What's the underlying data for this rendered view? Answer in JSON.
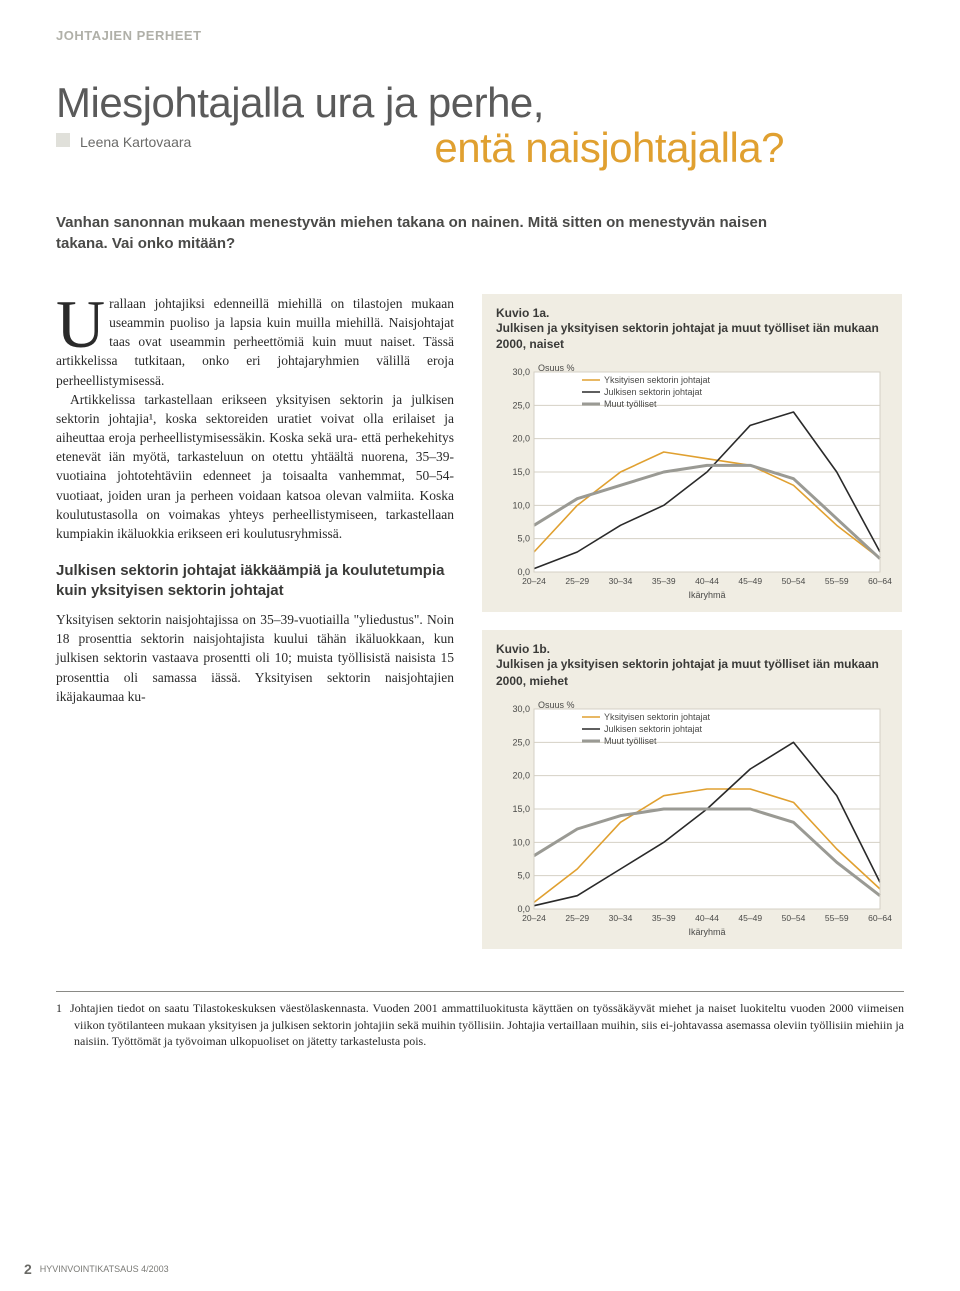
{
  "section_label": "JOHTAJIEN PERHEET",
  "title_line1": "Miesjohtajalla ura ja perhe,",
  "title_line2": "entä naisjohtajalla?",
  "author": "Leena Kartovaara",
  "lead": "Vanhan sanonnan mukaan menestyvän miehen takana on nainen. Mitä sitten on menestyvän naisen takana. Vai onko mitään?",
  "dropcap": "U",
  "para1": "rallaan johtajiksi edenneillä miehillä on tilastojen mukaan useammin puoliso ja lapsia kuin muilla miehillä. Naisjohtajat taas ovat useammin perheettömiä kuin muut naiset. Tässä artikkelissa tutkitaan, onko eri johtajaryhmien välillä eroja perheellistymisessä.",
  "para2": "Artikkelissa tarkastellaan erikseen yksityisen sektorin ja julkisen sektorin johtajia¹, koska sektoreiden uratiet voivat olla erilaiset ja aiheuttaa eroja perheellistymisessäkin. Koska sekä ura- että perhekehitys etenevät iän myötä, tarkasteluun on otettu yhtäältä nuorena, 35–39-vuotiaina johtotehtäviin edenneet ja toisaalta vanhemmat, 50–54-vuotiaat, joiden uran ja perheen voidaan katsoa olevan valmiita. Koska koulutustasolla on voimakas yhteys perheellistymiseen, tarkastellaan kumpiakin ikäluokkia erikseen eri koulutusryhmissä.",
  "subhead1": "Julkisen sektorin johtajat iäkkäämpiä ja koulutetumpia kuin yksityisen sektorin johtajat",
  "para3": "Yksityisen sektorin naisjohtajissa on 35–39-vuotiailla \"yliedustus\". Noin 18 prosenttia sektorin naisjohtajista kuului tähän ikäluokkaan, kun julkisen sektorin vastaava prosentti oli 10; muista työllisistä naisista 15 prosenttia oli samassa iässä. Yksityisen sektorin naisjohtajien ikäjakaumaa ku-",
  "chart1": {
    "label": "Kuvio 1a.",
    "title": "Julkisen ja yksityisen sektorin johtajat ja muut työlliset iän mukaan 2000, naiset",
    "y_axis_label": "Osuus %",
    "x_axis_label": "Ikäryhmä",
    "y_ticks": [
      "0,0",
      "5,0",
      "10,0",
      "15,0",
      "20,0",
      "25,0",
      "30,0"
    ],
    "y_min": 0,
    "y_max": 30,
    "x_categories": [
      "20–24",
      "25–29",
      "30–34",
      "35–39",
      "40–44",
      "45–49",
      "50–54",
      "55–59",
      "60–64"
    ],
    "series": [
      {
        "name": "Yksityisen sektorin johtajat",
        "color": "#e0a030",
        "width": 1.6,
        "values": [
          3,
          10,
          15,
          18,
          17,
          16,
          13,
          7,
          2
        ]
      },
      {
        "name": "Julkisen sektorin johtajat",
        "color": "#2a2a2a",
        "width": 1.6,
        "values": [
          0.5,
          3,
          7,
          10,
          15,
          22,
          24,
          15,
          3
        ]
      },
      {
        "name": "Muut työlliset",
        "color": "#9a9a94",
        "width": 3.0,
        "values": [
          7,
          11,
          13,
          15,
          16,
          16,
          14,
          8,
          2
        ]
      }
    ],
    "bg": "#f0ede3",
    "plot_bg": "#ffffff",
    "grid": "#d4d0c4"
  },
  "chart2": {
    "label": "Kuvio 1b.",
    "title": "Julkisen ja yksityisen sektorin johtajat ja muut työlliset iän mukaan 2000, miehet",
    "y_axis_label": "Osuus %",
    "x_axis_label": "Ikäryhmä",
    "y_ticks": [
      "0,0",
      "5,0",
      "10,0",
      "15,0",
      "20,0",
      "25,0",
      "30,0"
    ],
    "y_min": 0,
    "y_max": 30,
    "x_categories": [
      "20–24",
      "25–29",
      "30–34",
      "35–39",
      "40–44",
      "45–49",
      "50–54",
      "55–59",
      "60–64"
    ],
    "series": [
      {
        "name": "Yksityisen sektorin johtajat",
        "color": "#e0a030",
        "width": 1.6,
        "values": [
          1,
          6,
          13,
          17,
          18,
          18,
          16,
          9,
          3
        ]
      },
      {
        "name": "Julkisen sektorin johtajat",
        "color": "#2a2a2a",
        "width": 1.6,
        "values": [
          0.5,
          2,
          6,
          10,
          15,
          21,
          25,
          17,
          4
        ]
      },
      {
        "name": "Muut työlliset",
        "color": "#9a9a94",
        "width": 3.0,
        "values": [
          8,
          12,
          14,
          15,
          15,
          15,
          13,
          7,
          2
        ]
      }
    ],
    "bg": "#f0ede3",
    "plot_bg": "#ffffff",
    "grid": "#d4d0c4"
  },
  "footnote_num": "1",
  "footnote": "Johtajien tiedot on saatu Tilastokeskuksen väestölaskennasta. Vuoden 2001 ammattiluokitusta käyttäen on työssäkäyvät miehet ja naiset luokiteltu vuoden 2000 viimeisen viikon työtilanteen mukaan yksityisen ja julkisen sektorin johtajiin sekä muihin työllisiin. Johtajia vertaillaan muihin, siis ei-johtavassa asemassa oleviin työllisiin miehiin ja naisiin. Työttömät ja työvoiman ulkopuoliset on jätetty tarkastelusta pois.",
  "page_number": "2",
  "pub": "HYVINVOINTIKATSAUS 4/2003"
}
